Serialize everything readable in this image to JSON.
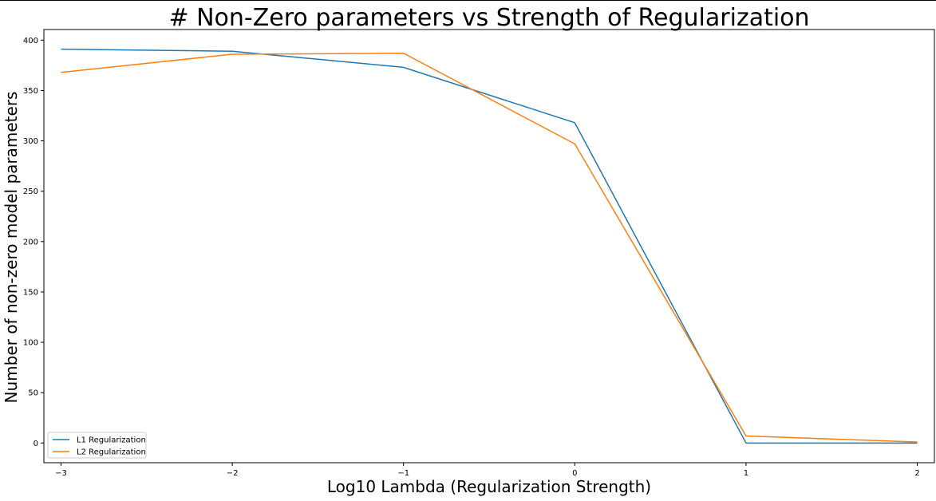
{
  "chart_data": {
    "type": "line",
    "title": "# Non-Zero parameters vs Strength of Regularization",
    "xlabel": "Log10 Lambda (Regularization Strength)",
    "ylabel": "Number of non-zero model parameters",
    "x": [
      -3,
      -2,
      -1,
      0,
      1,
      2
    ],
    "series": [
      {
        "name": "L1 Regularization",
        "color": "#1f77b4",
        "values": [
          391,
          389,
          373,
          318,
          0,
          0
        ]
      },
      {
        "name": "L2 Regularization",
        "color": "#ff7f0e",
        "values": [
          368,
          386,
          387,
          297,
          7,
          1
        ]
      }
    ],
    "xlim": [
      -3.1,
      2.1
    ],
    "ylim": [
      -19.55,
      410.55
    ],
    "xticks": [
      -3,
      -2,
      -1,
      0,
      1,
      2
    ],
    "xtick_labels": [
      "−3",
      "−2",
      "−1",
      "0",
      "1",
      "2"
    ],
    "yticks": [
      0,
      50,
      100,
      150,
      200,
      250,
      300,
      350,
      400
    ],
    "ytick_labels": [
      "0",
      "50",
      "100",
      "150",
      "200",
      "250",
      "300",
      "350",
      "400"
    ],
    "grid": false,
    "legend_position": "lower-left"
  }
}
